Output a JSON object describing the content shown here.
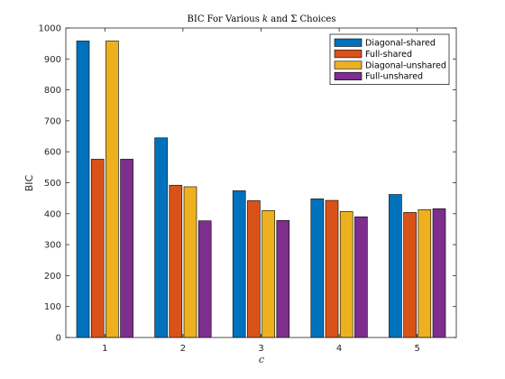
{
  "chart_data": {
    "type": "bar",
    "title_parts": [
      "BIC For Various ",
      "k",
      " and Σ Choices"
    ],
    "xlabel": "c",
    "ylabel": "BIC",
    "categories": [
      "1",
      "2",
      "3",
      "4",
      "5"
    ],
    "ylim": [
      0,
      1000
    ],
    "yticks": [
      "0",
      "100",
      "200",
      "300",
      "400",
      "500",
      "600",
      "700",
      "800",
      "900",
      "1000"
    ],
    "grid": false,
    "legend_position": "top-right",
    "series": [
      {
        "name": "Diagonal-shared",
        "color": "#0072BD",
        "values": [
          958,
          645,
          474,
          448,
          462
        ]
      },
      {
        "name": "Full-shared",
        "color": "#D95319",
        "values": [
          576,
          492,
          442,
          443,
          404
        ]
      },
      {
        "name": "Diagonal-unshared",
        "color": "#EDB120",
        "values": [
          958,
          487,
          410,
          407,
          413
        ]
      },
      {
        "name": "Full-unshared",
        "color": "#7E2F8E",
        "values": [
          576,
          377,
          378,
          390,
          416
        ]
      }
    ]
  }
}
